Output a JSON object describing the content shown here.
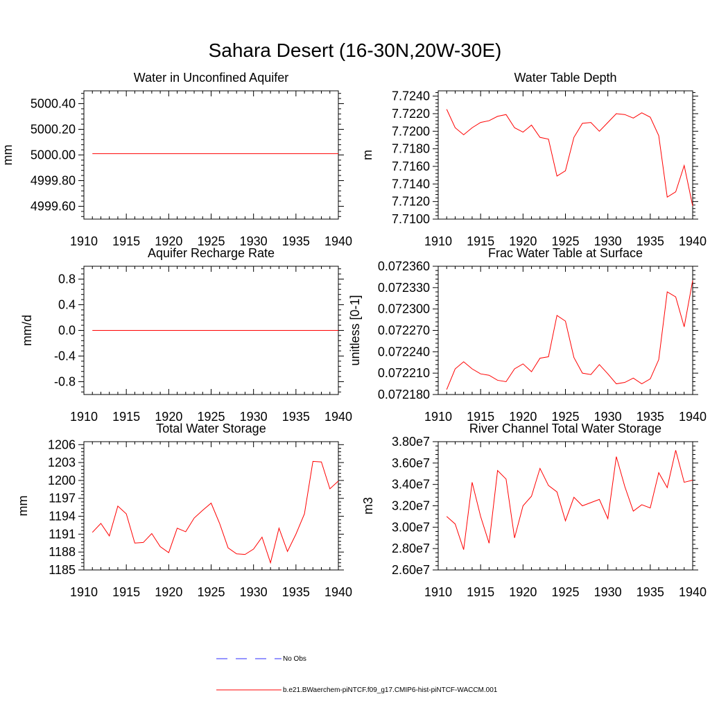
{
  "figure": {
    "title": "Sahara Desert (16-30N,20W-30E)",
    "line_color": "#ff0000",
    "obs_color": "#2b2bff"
  },
  "legend": {
    "placement": "bottom-center",
    "entries": [
      {
        "label": "No Obs",
        "style": "dashed",
        "color": "#2b2bff"
      },
      {
        "label": "b.e21.BWaerchem-piNTCF.f09_g17.CMIP6-hist-piNTCF-WACCM.001",
        "style": "solid",
        "color": "#ff0000"
      }
    ]
  },
  "chart_data": [
    {
      "type": "line",
      "title": "Water in Unconfined Aquifer",
      "xlabel": "",
      "ylabel": "mm",
      "xlim": [
        1910,
        1940
      ],
      "ylim": [
        4999.5,
        5000.5
      ],
      "xticks": [
        1910,
        1915,
        1920,
        1925,
        1930,
        1935,
        1940
      ],
      "yticks": [
        4999.6,
        4999.8,
        5000.0,
        5000.2,
        5000.4
      ],
      "ytick_labels": [
        "4999.60",
        "4999.80",
        "5000.00",
        "5000.20",
        "5000.40"
      ],
      "series": [
        {
          "x": [
            1911,
            1912,
            1913,
            1914,
            1915,
            1916,
            1917,
            1918,
            1919,
            1920,
            1921,
            1922,
            1923,
            1924,
            1925,
            1926,
            1927,
            1928,
            1929,
            1930,
            1931,
            1932,
            1933,
            1934,
            1935,
            1936,
            1937,
            1938,
            1939,
            1940
          ],
          "values": [
            5000.01,
            5000.01,
            5000.01,
            5000.01,
            5000.01,
            5000.01,
            5000.01,
            5000.01,
            5000.01,
            5000.01,
            5000.01,
            5000.01,
            5000.01,
            5000.01,
            5000.01,
            5000.01,
            5000.01,
            5000.01,
            5000.01,
            5000.01,
            5000.01,
            5000.01,
            5000.01,
            5000.01,
            5000.01,
            5000.01,
            5000.01,
            5000.01,
            5000.01,
            5000.01
          ]
        }
      ]
    },
    {
      "type": "line",
      "title": "Water Table Depth",
      "xlabel": "",
      "ylabel": "m",
      "xlim": [
        1910,
        1940
      ],
      "ylim": [
        7.71,
        7.7246
      ],
      "xticks": [
        1910,
        1915,
        1920,
        1925,
        1930,
        1935,
        1940
      ],
      "yticks": [
        7.71,
        7.712,
        7.714,
        7.716,
        7.718,
        7.72,
        7.722,
        7.724
      ],
      "ytick_labels": [
        "7.7100",
        "7.7120",
        "7.7140",
        "7.7160",
        "7.7180",
        "7.7200",
        "7.7220",
        "7.7240"
      ],
      "series": [
        {
          "x": [
            1911,
            1912,
            1913,
            1914,
            1915,
            1916,
            1917,
            1918,
            1919,
            1920,
            1921,
            1922,
            1923,
            1924,
            1925,
            1926,
            1927,
            1928,
            1929,
            1930,
            1931,
            1932,
            1933,
            1934,
            1935,
            1936,
            1937,
            1938,
            1939,
            1940
          ],
          "values": [
            7.7225,
            7.7204,
            7.7196,
            7.7204,
            7.721,
            7.7212,
            7.7217,
            7.7219,
            7.7204,
            7.7199,
            7.7207,
            7.7193,
            7.7191,
            7.7149,
            7.7155,
            7.7193,
            7.7209,
            7.721,
            7.72,
            7.721,
            7.722,
            7.7219,
            7.7215,
            7.7221,
            7.7216,
            7.7195,
            7.7125,
            7.7131,
            7.7161,
            7.7115
          ]
        }
      ]
    },
    {
      "type": "line",
      "title": "Aquifer Recharge Rate",
      "xlabel": "",
      "ylabel": "mm/d",
      "xlim": [
        1910,
        1940
      ],
      "ylim": [
        -1.0,
        1.0
      ],
      "xticks": [
        1910,
        1915,
        1920,
        1925,
        1930,
        1935,
        1940
      ],
      "yticks": [
        -0.8,
        -0.4,
        0.0,
        0.4,
        0.8
      ],
      "ytick_labels": [
        "-0.8",
        "-0.4",
        "0.0",
        "0.4",
        "0.8"
      ],
      "series": [
        {
          "x": [
            1911,
            1912,
            1913,
            1914,
            1915,
            1916,
            1917,
            1918,
            1919,
            1920,
            1921,
            1922,
            1923,
            1924,
            1925,
            1926,
            1927,
            1928,
            1929,
            1930,
            1931,
            1932,
            1933,
            1934,
            1935,
            1936,
            1937,
            1938,
            1939,
            1940
          ],
          "values": [
            0,
            0,
            0,
            0,
            0,
            0,
            0,
            0,
            0,
            0,
            0,
            0,
            0,
            0,
            0,
            0,
            0,
            0,
            0,
            0,
            0,
            0,
            0,
            0,
            0,
            0,
            0,
            0,
            0,
            0
          ]
        }
      ]
    },
    {
      "type": "line",
      "title": "Frac Water Table at Surface",
      "xlabel": "",
      "ylabel": "unitless [0-1]",
      "xlim": [
        1910,
        1940
      ],
      "ylim": [
        0.07218,
        0.07236
      ],
      "xticks": [
        1910,
        1915,
        1920,
        1925,
        1930,
        1935,
        1940
      ],
      "yticks": [
        0.07218,
        0.07221,
        0.07224,
        0.07227,
        0.0723,
        0.07233,
        0.07236
      ],
      "ytick_labels": [
        "0.072180",
        "0.072210",
        "0.072240",
        "0.072270",
        "0.072300",
        "0.072330",
        "0.072360"
      ],
      "series": [
        {
          "x": [
            1911,
            1912,
            1913,
            1914,
            1915,
            1916,
            1917,
            1918,
            1919,
            1920,
            1921,
            1922,
            1923,
            1924,
            1925,
            1926,
            1927,
            1928,
            1929,
            1930,
            1931,
            1932,
            1933,
            1934,
            1935,
            1936,
            1937,
            1938,
            1939,
            1940
          ],
          "values": [
            0.072187,
            0.072216,
            0.072226,
            0.072216,
            0.072209,
            0.072207,
            0.0722,
            0.072198,
            0.072216,
            0.072223,
            0.072212,
            0.072231,
            0.072233,
            0.072291,
            0.072283,
            0.072232,
            0.07221,
            0.072208,
            0.072222,
            0.072209,
            0.072195,
            0.072197,
            0.072203,
            0.072195,
            0.072202,
            0.072229,
            0.072324,
            0.072317,
            0.072275,
            0.07234
          ]
        }
      ]
    },
    {
      "type": "line",
      "title": "Total Water Storage",
      "xlabel": "",
      "ylabel": "mm",
      "xlim": [
        1910,
        1940
      ],
      "ylim": [
        1185,
        1206.5
      ],
      "xticks": [
        1910,
        1915,
        1920,
        1925,
        1930,
        1935,
        1940
      ],
      "yticks": [
        1185,
        1188,
        1191,
        1194,
        1197,
        1200,
        1203,
        1206
      ],
      "ytick_labels": [
        "1185",
        "1188",
        "1191",
        "1194",
        "1197",
        "1200",
        "1203",
        "1206"
      ],
      "series": [
        {
          "x": [
            1911,
            1912,
            1913,
            1914,
            1915,
            1916,
            1917,
            1918,
            1919,
            1920,
            1921,
            1922,
            1923,
            1924,
            1925,
            1926,
            1927,
            1928,
            1929,
            1930,
            1931,
            1932,
            1933,
            1934,
            1935,
            1936,
            1937,
            1938,
            1939,
            1940
          ],
          "values": [
            1191.3,
            1192.8,
            1190.7,
            1195.7,
            1194.4,
            1189.5,
            1189.6,
            1191.1,
            1188.9,
            1187.9,
            1192.0,
            1191.4,
            1193.7,
            1195.0,
            1196.2,
            1192.8,
            1188.7,
            1187.7,
            1187.6,
            1188.5,
            1190.5,
            1186.2,
            1192.0,
            1188.1,
            1191.0,
            1194.4,
            1203.2,
            1203.1,
            1198.6,
            1199.9
          ]
        }
      ]
    },
    {
      "type": "line",
      "title": "River Channel Total Water Storage",
      "xlabel": "",
      "ylabel": "m3",
      "xlim": [
        1910,
        1940
      ],
      "ylim": [
        26000000.0,
        38000000.0
      ],
      "xticks": [
        1910,
        1915,
        1920,
        1925,
        1930,
        1935,
        1940
      ],
      "yticks": [
        26000000.0,
        28000000.0,
        30000000.0,
        32000000.0,
        34000000.0,
        36000000.0,
        38000000.0
      ],
      "ytick_labels": [
        "2.60e7",
        "2.80e7",
        "3.00e7",
        "3.20e7",
        "3.40e7",
        "3.60e7",
        "3.80e7"
      ],
      "series": [
        {
          "x": [
            1911,
            1912,
            1913,
            1914,
            1915,
            1916,
            1917,
            1918,
            1919,
            1920,
            1921,
            1922,
            1923,
            1924,
            1925,
            1926,
            1927,
            1928,
            1929,
            1930,
            1931,
            1932,
            1933,
            1934,
            1935,
            1936,
            1937,
            1938,
            1939,
            1940
          ],
          "values": [
            31000000.0,
            30300000.0,
            27900000.0,
            34200000.0,
            31000000.0,
            28500000.0,
            35300000.0,
            34500000.0,
            29000000.0,
            32000000.0,
            32900000.0,
            35500000.0,
            33900000.0,
            33300000.0,
            30600000.0,
            32800000.0,
            32000000.0,
            32300000.0,
            32600000.0,
            30800000.0,
            36600000.0,
            33800000.0,
            31500000.0,
            32100000.0,
            31800000.0,
            35100000.0,
            33700000.0,
            37200000.0,
            34200000.0,
            34400000.0
          ]
        }
      ]
    }
  ]
}
